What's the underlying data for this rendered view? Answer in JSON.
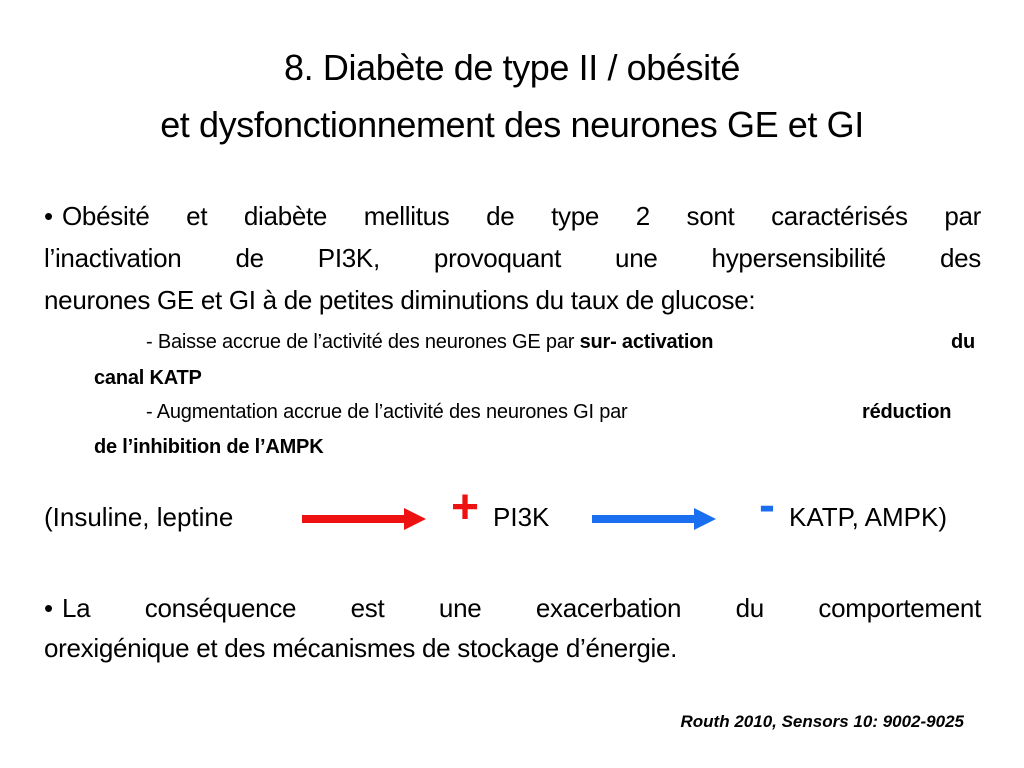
{
  "title": {
    "line1": "8. Diabète de type II / obésité",
    "line2": "et dysfonctionnement des neurones GE et GI"
  },
  "bullet1": {
    "marker": "•",
    "line1": "Obésité et diabète mellitus de type 2 sont caractérisés par",
    "line2": "l’inactivation de PI3K, provoquant une hypersensibilité des",
    "line3": "neurones GE et GI à de petites diminutions du taux de glucose:"
  },
  "sub1": {
    "prefix": "- Baisse accrue de l’activité des neurones GE par ",
    "bold_a": "sur- activation",
    "bold_b": "du",
    "bold_c": "canal KATP"
  },
  "sub2": {
    "prefix": "- Augmentation accrue de l’activité des neurones GI par",
    "bold_a": "réduction",
    "bold_b": "de l’inhibition de l’AMPK"
  },
  "flow": {
    "left_text": "(Insuline, leptine",
    "plus_sign": "+",
    "middle_text": "PI3K",
    "minus_sign": "-",
    "right_text": "KATP, AMPK)",
    "colors": {
      "red_arrow": "#ee1111",
      "blue_arrow": "#1a6ff0",
      "plus": "#ee1111",
      "minus": "#1a6ff0"
    }
  },
  "bullet2": {
    "marker": "•",
    "line1": "La conséquence est une exacerbation du comportement",
    "line2": "orexigénique et des mécanismes de stockage d’énergie."
  },
  "citation": "Routh 2010, Sensors 10: 9002-9025"
}
